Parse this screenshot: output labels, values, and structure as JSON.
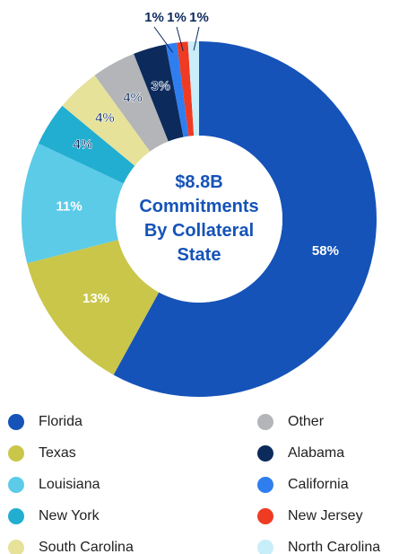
{
  "chart_data": {
    "type": "donut",
    "center_label": [
      "$8.8B",
      "Commitments",
      "By Collateral",
      "State"
    ],
    "categories": [
      "Florida",
      "Texas",
      "Louisiana",
      "New York",
      "South Carolina",
      "Other",
      "Alabama",
      "California",
      "New Jersey",
      "North Carolina"
    ],
    "values": [
      58,
      13,
      11,
      4,
      4,
      4,
      3,
      1,
      1,
      1
    ],
    "value_labels": [
      "58%",
      "13%",
      "11%",
      "4%",
      "4%",
      "4%",
      "3%",
      "1%",
      "1%",
      "1%"
    ],
    "colors": [
      "#1553b8",
      "#c9c64a",
      "#5ccbe8",
      "#22aed1",
      "#e6e29a",
      "#b3b5b8",
      "#0c2a5c",
      "#2f7ef0",
      "#ef3b23",
      "#c8eefa"
    ],
    "legend": "bottom"
  }
}
